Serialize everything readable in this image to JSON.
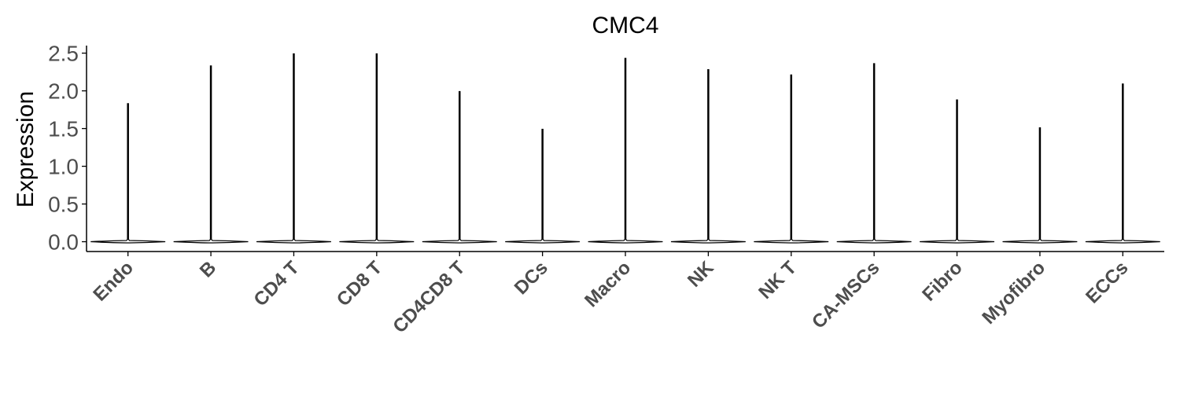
{
  "chart_data": {
    "type": "violin",
    "title": "CMC4",
    "xlabel": "",
    "ylabel": "Expression",
    "ylim": [
      -0.13,
      2.6
    ],
    "yticks": [
      "0.0",
      "0.5",
      "1.0",
      "1.5",
      "2.0",
      "2.5"
    ],
    "ytick_values": [
      0.0,
      0.5,
      1.0,
      1.5,
      2.0,
      2.5
    ],
    "categories": [
      "Endo",
      "B",
      "CD4 T",
      "CD8 T",
      "CD4CD8 T",
      "DCs",
      "Macro",
      "NK",
      "NK T",
      "CA-MSCs",
      "Fibro",
      "Myofibro",
      "ECCs"
    ],
    "max_values": [
      1.83,
      2.33,
      2.49,
      2.49,
      1.99,
      1.49,
      2.43,
      2.28,
      2.21,
      2.36,
      1.88,
      1.51,
      2.09
    ],
    "median_values": [
      0,
      0,
      0,
      0,
      0,
      0,
      0,
      0,
      0,
      0,
      0,
      0,
      0
    ],
    "grid": false,
    "legend": "none"
  }
}
